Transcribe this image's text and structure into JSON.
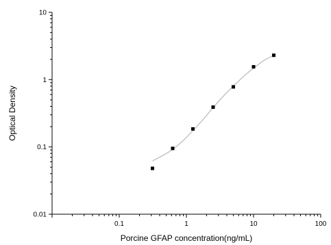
{
  "chart_data": {
    "type": "scatter",
    "title": "",
    "xlabel": "Porcine GFAP concentration(ng/mL)",
    "ylabel": "Optical Density",
    "x_scale": "log",
    "y_scale": "log",
    "xlim": [
      0.01,
      100
    ],
    "ylim": [
      0.01,
      10
    ],
    "x_ticks": [
      {
        "value": 0.1,
        "label": "0.1"
      },
      {
        "value": 1,
        "label": "1"
      },
      {
        "value": 10,
        "label": "10"
      },
      {
        "value": 100,
        "label": "100"
      }
    ],
    "y_ticks": [
      {
        "value": 0.01,
        "label": "0.01"
      },
      {
        "value": 0.1,
        "label": "0.1"
      },
      {
        "value": 1,
        "label": "1"
      },
      {
        "value": 10,
        "label": "10"
      }
    ],
    "grid": false,
    "series": [
      {
        "marker": "square",
        "color": "#000000",
        "x": [
          0.3125,
          0.625,
          1.25,
          2.5,
          5,
          10,
          20
        ],
        "y": [
          0.048,
          0.095,
          0.185,
          0.39,
          0.78,
          1.55,
          2.3
        ]
      }
    ],
    "fit_curve": {
      "color": "#b8b8b8",
      "x": [
        0.3125,
        0.45,
        0.625,
        0.9,
        1.25,
        1.8,
        2.5,
        3.5,
        5,
        7,
        10,
        14,
        20
      ],
      "y": [
        0.062,
        0.075,
        0.092,
        0.125,
        0.175,
        0.26,
        0.385,
        0.56,
        0.8,
        1.1,
        1.48,
        1.9,
        2.3
      ]
    }
  }
}
